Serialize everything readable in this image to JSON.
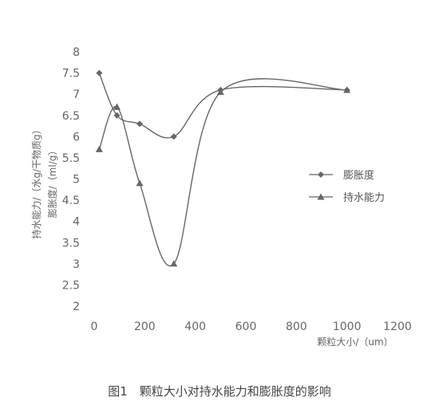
{
  "caption": "图1　颗粒大小对持水能力和膨胀度的影响",
  "chart_data": {
    "type": "line",
    "xlabel": "颗粒大小/（um）",
    "ylabel_lines": [
      "持水能力/（水g/干物质g）",
      "膨胀度/（ml/g）"
    ],
    "xlim": [
      0,
      1200
    ],
    "ylim": [
      2,
      8
    ],
    "xticks": [
      0,
      200,
      400,
      600,
      800,
      1000,
      1200
    ],
    "yticks": [
      2,
      2.5,
      3,
      3.5,
      4,
      4.5,
      5,
      5.5,
      6,
      6.5,
      7,
      7.5,
      8
    ],
    "xtick_labels": [
      "0",
      "200",
      "400",
      "600",
      "800",
      "1000",
      "1200"
    ],
    "ytick_labels": [
      "2",
      "2.5",
      "3",
      "3.5",
      "4",
      "4.5",
      "5",
      "5.5",
      "6",
      "6.5",
      "7",
      "7.5",
      "8"
    ],
    "legend_position": "right",
    "series": [
      {
        "name": "膨胀度",
        "marker": "diamond",
        "color": "#666666",
        "x": [
          20,
          90,
          180,
          315,
          500,
          1000
        ],
        "y": [
          7.5,
          6.5,
          6.3,
          6.0,
          7.1,
          7.1
        ]
      },
      {
        "name": "持水能力",
        "marker": "triangle",
        "color": "#666666",
        "x": [
          20,
          90,
          180,
          315,
          500,
          1000
        ],
        "y": [
          5.7,
          6.7,
          4.9,
          3.0,
          7.05,
          7.1
        ]
      }
    ]
  }
}
